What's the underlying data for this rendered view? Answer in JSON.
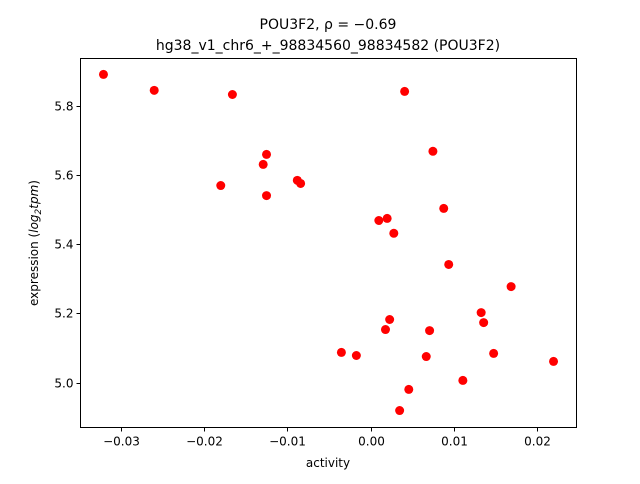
{
  "chart_data": {
    "type": "scatter",
    "title": "POU3F2, ρ = −0.69",
    "subtitle": "hg38_v1_chr6_+_98834560_98834582 (POU3F2)",
    "xlabel": "activity",
    "ylabel_parts": {
      "prefix": "expression (",
      "log": "log",
      "sub": "2",
      "tpm": "tpm",
      "suffix": ")"
    },
    "xlim": [
      -0.03486,
      0.02476
    ],
    "ylim": [
      4.87,
      5.936
    ],
    "xticks": [
      -0.03,
      -0.02,
      -0.01,
      0.0,
      0.01,
      0.02
    ],
    "xtick_labels": [
      "−0.03",
      "−0.02",
      "−0.01",
      "0.00",
      "0.01",
      "0.02"
    ],
    "yticks": [
      5.0,
      5.2,
      5.4,
      5.6,
      5.8
    ],
    "ytick_labels": [
      "5.0",
      "5.2",
      "5.4",
      "5.6",
      "5.8"
    ],
    "grid": false,
    "marker_color": "#ff0000",
    "points": [
      [
        -0.0321,
        5.89
      ],
      [
        -0.026,
        5.844
      ],
      [
        -0.0166,
        5.832
      ],
      [
        0.0041,
        5.841
      ],
      [
        0.0075,
        5.668
      ],
      [
        -0.0125,
        5.659
      ],
      [
        -0.0129,
        5.63
      ],
      [
        -0.018,
        5.569
      ],
      [
        -0.0088,
        5.584
      ],
      [
        -0.0084,
        5.575
      ],
      [
        -0.0125,
        5.54
      ],
      [
        0.0088,
        5.503
      ],
      [
        0.001,
        5.468
      ],
      [
        0.002,
        5.474
      ],
      [
        0.0028,
        5.431
      ],
      [
        0.0094,
        5.341
      ],
      [
        0.0169,
        5.277
      ],
      [
        0.0133,
        5.202
      ],
      [
        0.0136,
        5.173
      ],
      [
        0.0023,
        5.182
      ],
      [
        0.0018,
        5.153
      ],
      [
        0.0071,
        5.15
      ],
      [
        -0.0035,
        5.087
      ],
      [
        -0.0017,
        5.078
      ],
      [
        0.0067,
        5.075
      ],
      [
        0.0148,
        5.084
      ],
      [
        0.022,
        5.061
      ],
      [
        0.0111,
        5.006
      ],
      [
        0.0046,
        4.98
      ],
      [
        0.0035,
        4.919
      ]
    ]
  }
}
